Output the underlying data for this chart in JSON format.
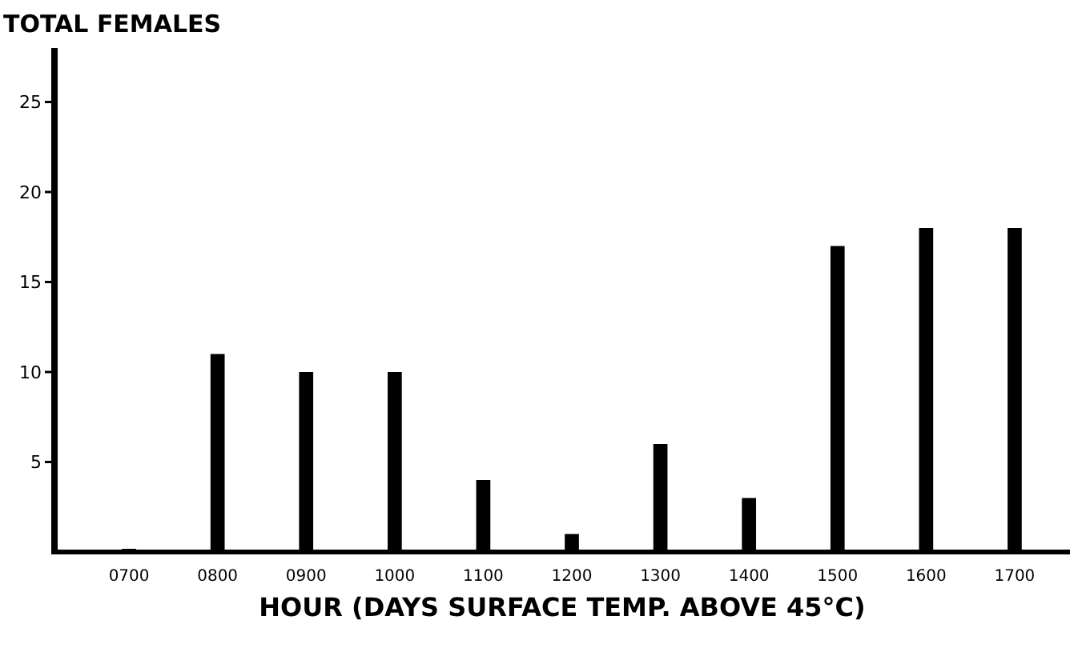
{
  "chart_data": {
    "type": "bar",
    "ylabel": "TOTAL FEMALES",
    "xlabel": "HOUR (DAYS SURFACE TEMP. ABOVE 45°C)",
    "categories": [
      "0700",
      "0800",
      "0900",
      "1000",
      "1100",
      "1200",
      "1300",
      "1400",
      "1500",
      "1600",
      "1700"
    ],
    "values": [
      0,
      11,
      10,
      10,
      4,
      1,
      6,
      3,
      17,
      18,
      18
    ],
    "color": "#000000",
    "ylim": [
      0,
      28
    ],
    "yticks": [
      5,
      10,
      15,
      20,
      25
    ],
    "grid": false
  }
}
